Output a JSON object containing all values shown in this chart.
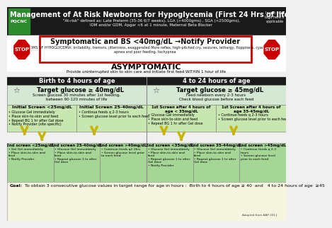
{
  "title": "Management of At Risk Newborns for Hypoglycemia (First 24 Hrs of life)",
  "subtitle1": "\"At-risk\" defined as: Late Preterm (35-36 6/7 weeks), LGA (>4000gms) , SGA (<2500gms),",
  "subtitle2": "IDM and/or GDM, Apgar <6 at 1 minute, Maternal Beta Blocker",
  "header_bg": "#1a1a1a",
  "header_text_color": "#ffffff",
  "stop_box_title": "Symptomatic and BS <40mg/dL →Notify Provider",
  "stop_box_subtitle": "SYMPTOMS OF HYPOGLYCEMIA: Irritability, tremors, jitteriness, exaggerated Moro reflex, high-pitched cry, seizures, lethargy, floppiness, cyanosis,\napnea and poor feeding, tachypnea",
  "stop_box_border": "#cc0000",
  "stop_color": "#cc0000",
  "asymptomatic_label": "ASYMPTOMATIC",
  "provide_label": "Provide uninterrupted skin to skin care and initiate first feed WITHIN 1 hour of life",
  "left_header": "Birth to 4 hours of age",
  "right_header": "4 to 24 hours of age",
  "left_target": "Target glucose ≥ 40mg/dL",
  "left_target_sub": "Screen glucose 30 minutes after 1st feeding,\nbetween 90-120 minutes of life",
  "right_target": "Target glucose ≥ 45mg/dL",
  "right_target_sub": "Feed newborn every 2-3 hours\nCheck blood glucose before each feed",
  "col_header_bg": "#1a1a1a",
  "col_header_text": "#ffffff",
  "target_bg": "#d5e8d4",
  "section_bg_light": "#e8f5e1",
  "section_bg_medium": "#c8e6c0",
  "section_bg_dark": "#a5d6a0",
  "arrow_color": "#c8b400",
  "goal_text": "Goal: To obtain 3 consecutive glucose values in target range for age in hours :  Birth to 4 hours of age ≥ 40  and   4 to 24 hours of age  ≥45",
  "init_left1_header": "Initial Screen <25mg/dL",
  "init_left1_bullets": "• Glucose Gel immediately\n• Place skin-to-skin and feed\n• Repeat BG 1 hr after Gel dose\n• Notify Provider (site specific)",
  "init_left2_header": "Initial Screen 25-40mg/dL",
  "init_left2_bullets": "• Continue feeds q 2-3 hours\n• Screen glucose level prior to each feed",
  "right1st_left_header": "1st Screen after 4 hours of\nage < 35mg/dL",
  "right1st_left_bullets": "• Glucose Gel immediately\n• Place skin-to-skin and feed\n• Repeat BG 1 hr after Gel dose",
  "right1st_right_header": "1st Screen after 4 hours of\nage 35-45mg/dL",
  "right1st_right_bullets": "• Continue feeds q 2-3 hours\n• Screen glucose level prior to each feed",
  "sec2_ll_header": "2nd screen <25mg/dL",
  "sec2_ll_bullets": "• Gel Gel immediately\n• Place skin-to-skin and\nfeed\n• Notify Provider",
  "sec2_lm_header": "2nd screen 25-40mg/dL",
  "sec2_lm_bullets": "• Glucose Gel immediately\n• Place skin-to-skin and\nfeed\n• Repeat glucose 1 hr after\nGel dose",
  "sec2_lr_header": "2nd screen >40mg/dL",
  "sec2_lr_bullets": "• Continue feeds q2-3hrs\n• Screen glucose level prior\nto each feed",
  "sec2_rl_header": "2nd screen <35mg/dL",
  "sec2_rl_bullets": "• Glucose Gel immediately\n• Place skin-to-skin and\nfeed\n• Repeat glucose 1 hr after\nGel dose\n• Notify Provider",
  "sec2_rm_header": "2nd screen 35-44mg/dL",
  "sec2_rm_bullets": "• Glucose Gel immediately\n• Place skin-to-skin and\nfeed\n• Repeat glucose 1 hr after\nGel dose",
  "sec2_rr_header": "2nd screen >45mg/dL",
  "sec2_rr_bullets": "• Continue feeds q 2-3\nhours\n• Screen glucose level\nprior to each feed"
}
